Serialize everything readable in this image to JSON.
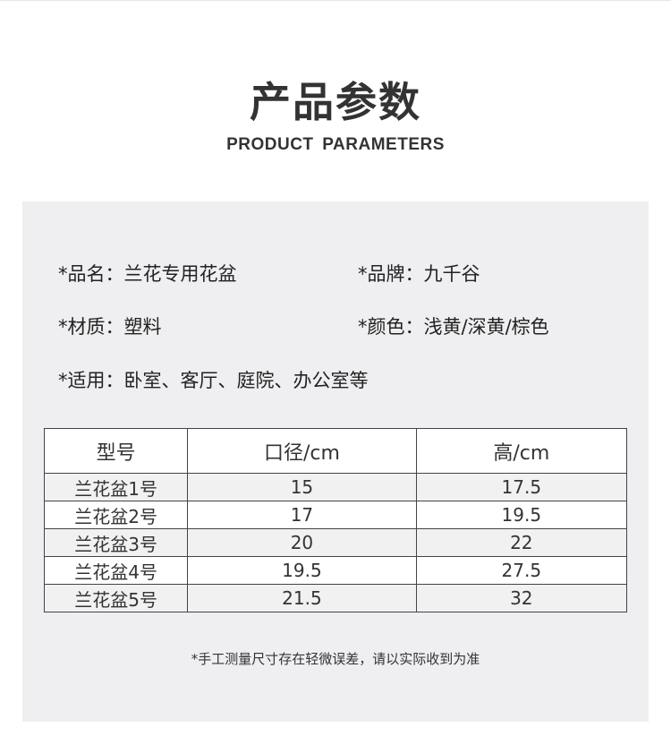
{
  "header": {
    "title": "产品参数",
    "subtitle": "PRODUCT PARAMETERS"
  },
  "info": {
    "name": "*品名：兰花专用花盆",
    "brand": "*品牌：九千谷",
    "material": "*材质：塑料",
    "color": "*颜色：浅黄/深黄/棕色",
    "usage": "*适用：卧室、客厅、庭院、办公室等"
  },
  "table": {
    "headers": [
      "型号",
      "口径/cm",
      "高/cm"
    ],
    "rows": [
      [
        "兰花盆1号",
        "15",
        "17.5"
      ],
      [
        "兰花盆2号",
        "17",
        "19.5"
      ],
      [
        "兰花盆3号",
        "20",
        "22"
      ],
      [
        "兰花盆4号",
        "19.5",
        "27.5"
      ],
      [
        "兰花盆5号",
        "21.5",
        "32"
      ]
    ]
  },
  "note": "*手工测量尺寸存在轻微误差，请以实际收到为准"
}
